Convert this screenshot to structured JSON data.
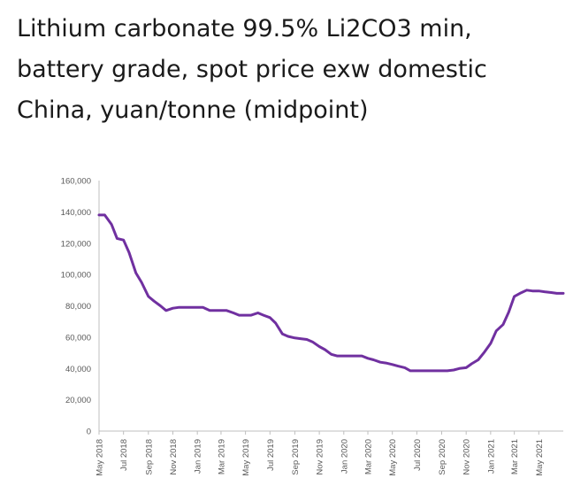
{
  "chart_data": {
    "type": "line",
    "title_lines": [
      "Lithium carbonate 99.5% Li2CO3 min,",
      "battery grade, spot price exw domestic",
      "China, yuan/tonne (midpoint)"
    ],
    "xlabel": "",
    "ylabel": "",
    "ylim": [
      0,
      160000
    ],
    "yticks": [
      0,
      20000,
      40000,
      60000,
      80000,
      100000,
      120000,
      140000,
      160000
    ],
    "ytick_labels": [
      "0",
      "20,000",
      "40,000",
      "60,000",
      "80,000",
      "100,000",
      "120,000",
      "140,000",
      "160,000"
    ],
    "xlim": [
      "2018-05",
      "2021-07"
    ],
    "xtick_labels": [
      "May 2018",
      "Jul 2018",
      "Sep 2018",
      "Nov 2018",
      "Jan 2019",
      "Mar 2019",
      "May 2019",
      "Jul 2019",
      "Sep 2019",
      "Nov 2019",
      "Jan 2020",
      "Mar 2020",
      "May 2020",
      "Jul 2020",
      "Sep 2020",
      "Nov 2020",
      "Jan 2021",
      "Mar 2021",
      "May 2021"
    ],
    "grid": false,
    "legend": "none",
    "line_color": "#7030a0",
    "series": [
      {
        "x": [
          "2018-05",
          "2018-05-15",
          "2018-06",
          "2018-06-15",
          "2018-07",
          "2018-07-15",
          "2018-08",
          "2018-08-15",
          "2018-09",
          "2018-09-15",
          "2018-10",
          "2018-10-15",
          "2018-11",
          "2018-11-15",
          "2018-12",
          "2018-12-15",
          "2019-01",
          "2019-01-15",
          "2019-02",
          "2019-02-15",
          "2019-03",
          "2019-03-15",
          "2019-04",
          "2019-04-15",
          "2019-05",
          "2019-05-15",
          "2019-06",
          "2019-06-15",
          "2019-07",
          "2019-07-15",
          "2019-08",
          "2019-08-15",
          "2019-09",
          "2019-09-15",
          "2019-10",
          "2019-10-15",
          "2019-11",
          "2019-11-15",
          "2019-12",
          "2019-12-15",
          "2020-01",
          "2020-01-15",
          "2020-02",
          "2020-02-15",
          "2020-03",
          "2020-03-15",
          "2020-04",
          "2020-04-15",
          "2020-05",
          "2020-05-15",
          "2020-06",
          "2020-06-15",
          "2020-07",
          "2020-07-15",
          "2020-08",
          "2020-08-15",
          "2020-09",
          "2020-09-15",
          "2020-10",
          "2020-10-15",
          "2020-11",
          "2020-11-15",
          "2020-12",
          "2020-12-15",
          "2021-01",
          "2021-01-15",
          "2021-02",
          "2021-02-15",
          "2021-03",
          "2021-03-15",
          "2021-04",
          "2021-04-15",
          "2021-05",
          "2021-05-15",
          "2021-06",
          "2021-06-15",
          "2021-07"
        ],
        "values": [
          138000,
          138000,
          132000,
          123000,
          122000,
          114000,
          101000,
          95000,
          86000,
          83000,
          80000,
          77000,
          78500,
          79000,
          79000,
          79000,
          79000,
          79000,
          77000,
          77000,
          77000,
          77000,
          75500,
          74000,
          74000,
          74000,
          75500,
          74000,
          72500,
          69000,
          62000,
          60500,
          59500,
          59000,
          58500,
          57000,
          54000,
          52000,
          49000,
          48000,
          48000,
          48000,
          48000,
          48000,
          46500,
          45500,
          44000,
          43500,
          42500,
          41500,
          40500,
          38500,
          38500,
          38500,
          38500,
          38500,
          38500,
          38500,
          39000,
          40000,
          40500,
          43000,
          45500,
          50000,
          56000,
          64000,
          68000,
          76000,
          86000,
          88000,
          90000,
          89500,
          89500,
          89000,
          88500,
          88000,
          88000
        ]
      }
    ]
  }
}
